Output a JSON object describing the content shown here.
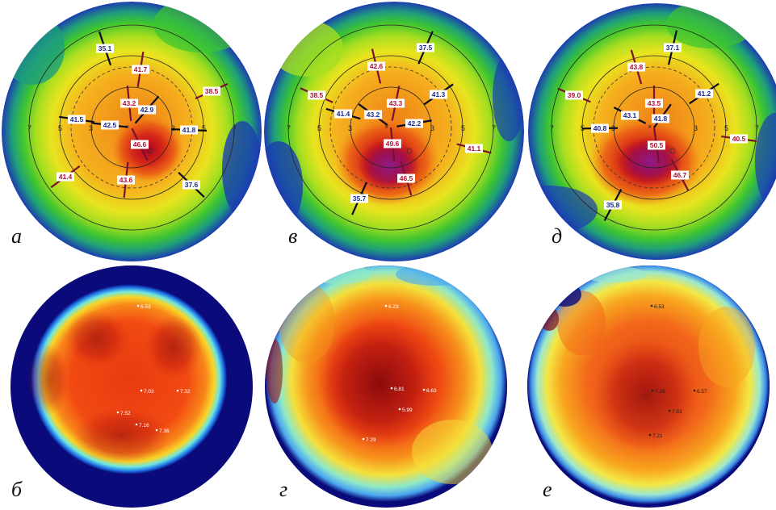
{
  "panels": [
    {
      "id": "a",
      "label": "а",
      "type": "topo",
      "cx": 0,
      "values": [
        {
          "text": "35.1",
          "kind": "blue",
          "dx": -33,
          "dy": -98
        },
        {
          "text": "41.7",
          "kind": "red",
          "dx": 11,
          "dy": -72
        },
        {
          "text": "38.5",
          "kind": "red",
          "dx": 99,
          "dy": -45
        },
        {
          "text": "43.2",
          "kind": "red",
          "dx": -3,
          "dy": -30
        },
        {
          "text": "42.9",
          "kind": "blue",
          "dx": 19,
          "dy": -22
        },
        {
          "text": "41.5",
          "kind": "blue",
          "dx": -68,
          "dy": -10
        },
        {
          "text": "42.5",
          "kind": "blue",
          "dx": -27,
          "dy": -3
        },
        {
          "text": "41.8",
          "kind": "blue",
          "dx": 71,
          "dy": 3
        },
        {
          "text": "46.6",
          "kind": "red",
          "dx": 10,
          "dy": 21
        },
        {
          "text": "41.4",
          "kind": "red",
          "dx": -82,
          "dy": 61
        },
        {
          "text": "43.6",
          "kind": "red",
          "dx": -7,
          "dy": 65
        },
        {
          "text": "37.6",
          "kind": "blue",
          "dx": 74,
          "dy": 71
        }
      ]
    },
    {
      "id": "v",
      "label": "в",
      "type": "topo",
      "cx": 0,
      "values": [
        {
          "text": "37.5",
          "kind": "blue",
          "dx": 43,
          "dy": -99
        },
        {
          "text": "42.6",
          "kind": "red",
          "dx": -18,
          "dy": -76
        },
        {
          "text": "38.5",
          "kind": "red",
          "dx": -92,
          "dy": -40
        },
        {
          "text": "41.3",
          "kind": "blue",
          "dx": 59,
          "dy": -41
        },
        {
          "text": "43.3",
          "kind": "red",
          "dx": 6,
          "dy": -30
        },
        {
          "text": "41.4",
          "kind": "blue",
          "dx": -59,
          "dy": -17
        },
        {
          "text": "43.2",
          "kind": "blue",
          "dx": -22,
          "dy": -16
        },
        {
          "text": "42.2",
          "kind": "blue",
          "dx": 29,
          "dy": -5
        },
        {
          "text": "49.6",
          "kind": "red",
          "dx": 2,
          "dy": 20
        },
        {
          "text": "41.1",
          "kind": "red",
          "dx": 103,
          "dy": 26
        },
        {
          "text": "46.5",
          "kind": "red",
          "dx": 19,
          "dy": 63
        },
        {
          "text": "35.7",
          "kind": "blue",
          "dx": -39,
          "dy": 88
        }
      ]
    },
    {
      "id": "d",
      "label": "д",
      "type": "topo",
      "cx": 0,
      "values": [
        {
          "text": "37.1",
          "kind": "blue",
          "dx": 23,
          "dy": -99
        },
        {
          "text": "43.8",
          "kind": "red",
          "dx": -22,
          "dy": -75
        },
        {
          "text": "39.0",
          "kind": "red",
          "dx": -99,
          "dy": -40
        },
        {
          "text": "41.2",
          "kind": "blue",
          "dx": 62,
          "dy": -42
        },
        {
          "text": "43.5",
          "kind": "red",
          "dx": 0,
          "dy": -30
        },
        {
          "text": "43.1",
          "kind": "blue",
          "dx": -30,
          "dy": -15
        },
        {
          "text": "41.8",
          "kind": "blue",
          "dx": 8,
          "dy": -11
        },
        {
          "text": "40.8",
          "kind": "blue",
          "dx": -67,
          "dy": 1
        },
        {
          "text": "50.5",
          "kind": "red",
          "dx": 3,
          "dy": 22
        },
        {
          "text": "40.5",
          "kind": "red",
          "dx": 105,
          "dy": 14
        },
        {
          "text": "46.7",
          "kind": "red",
          "dx": 32,
          "dy": 59
        },
        {
          "text": "35.8",
          "kind": "blue",
          "dx": -51,
          "dy": 96
        }
      ]
    },
    {
      "id": "b",
      "label": "б",
      "type": "heat",
      "points": [
        {
          "text": "6.53",
          "dx": 8,
          "dy": -100
        },
        {
          "text": "7.32",
          "dx": 57,
          "dy": 5
        },
        {
          "text": "7.03",
          "dx": 12,
          "dy": 5
        },
        {
          "text": "7.52",
          "dx": -17,
          "dy": 32
        },
        {
          "text": "7.16",
          "dx": 6,
          "dy": 47
        },
        {
          "text": "7.36",
          "dx": 31,
          "dy": 54
        }
      ]
    },
    {
      "id": "g",
      "label": "г",
      "type": "heat",
      "points": [
        {
          "text": "6.23",
          "dx": 0,
          "dy": -100
        },
        {
          "text": "6.63",
          "dx": 47,
          "dy": 4
        },
        {
          "text": "6.81",
          "dx": 7,
          "dy": 2
        },
        {
          "text": "5.99",
          "dx": 17,
          "dy": 28
        },
        {
          "text": "7.29",
          "dx": -28,
          "dy": 65
        }
      ]
    },
    {
      "id": "e",
      "label": "е",
      "type": "heat",
      "points": [
        {
          "text": "6.53",
          "dx": 4,
          "dy": -100
        },
        {
          "text": "6.57",
          "dx": 57,
          "dy": 5
        },
        {
          "text": "7.28",
          "dx": 5,
          "dy": 5
        },
        {
          "text": "7.53",
          "dx": 26,
          "dy": 30
        },
        {
          "text": "7.21",
          "dx": 2,
          "dy": 60
        }
      ]
    }
  ],
  "ticks": {
    "inner": "3",
    "mid": "5",
    "outer": "7"
  },
  "colors": {
    "blueLabel": "#1a2a8c",
    "redLabel": "#b01030",
    "heatBorder": "#0a0a7a"
  }
}
